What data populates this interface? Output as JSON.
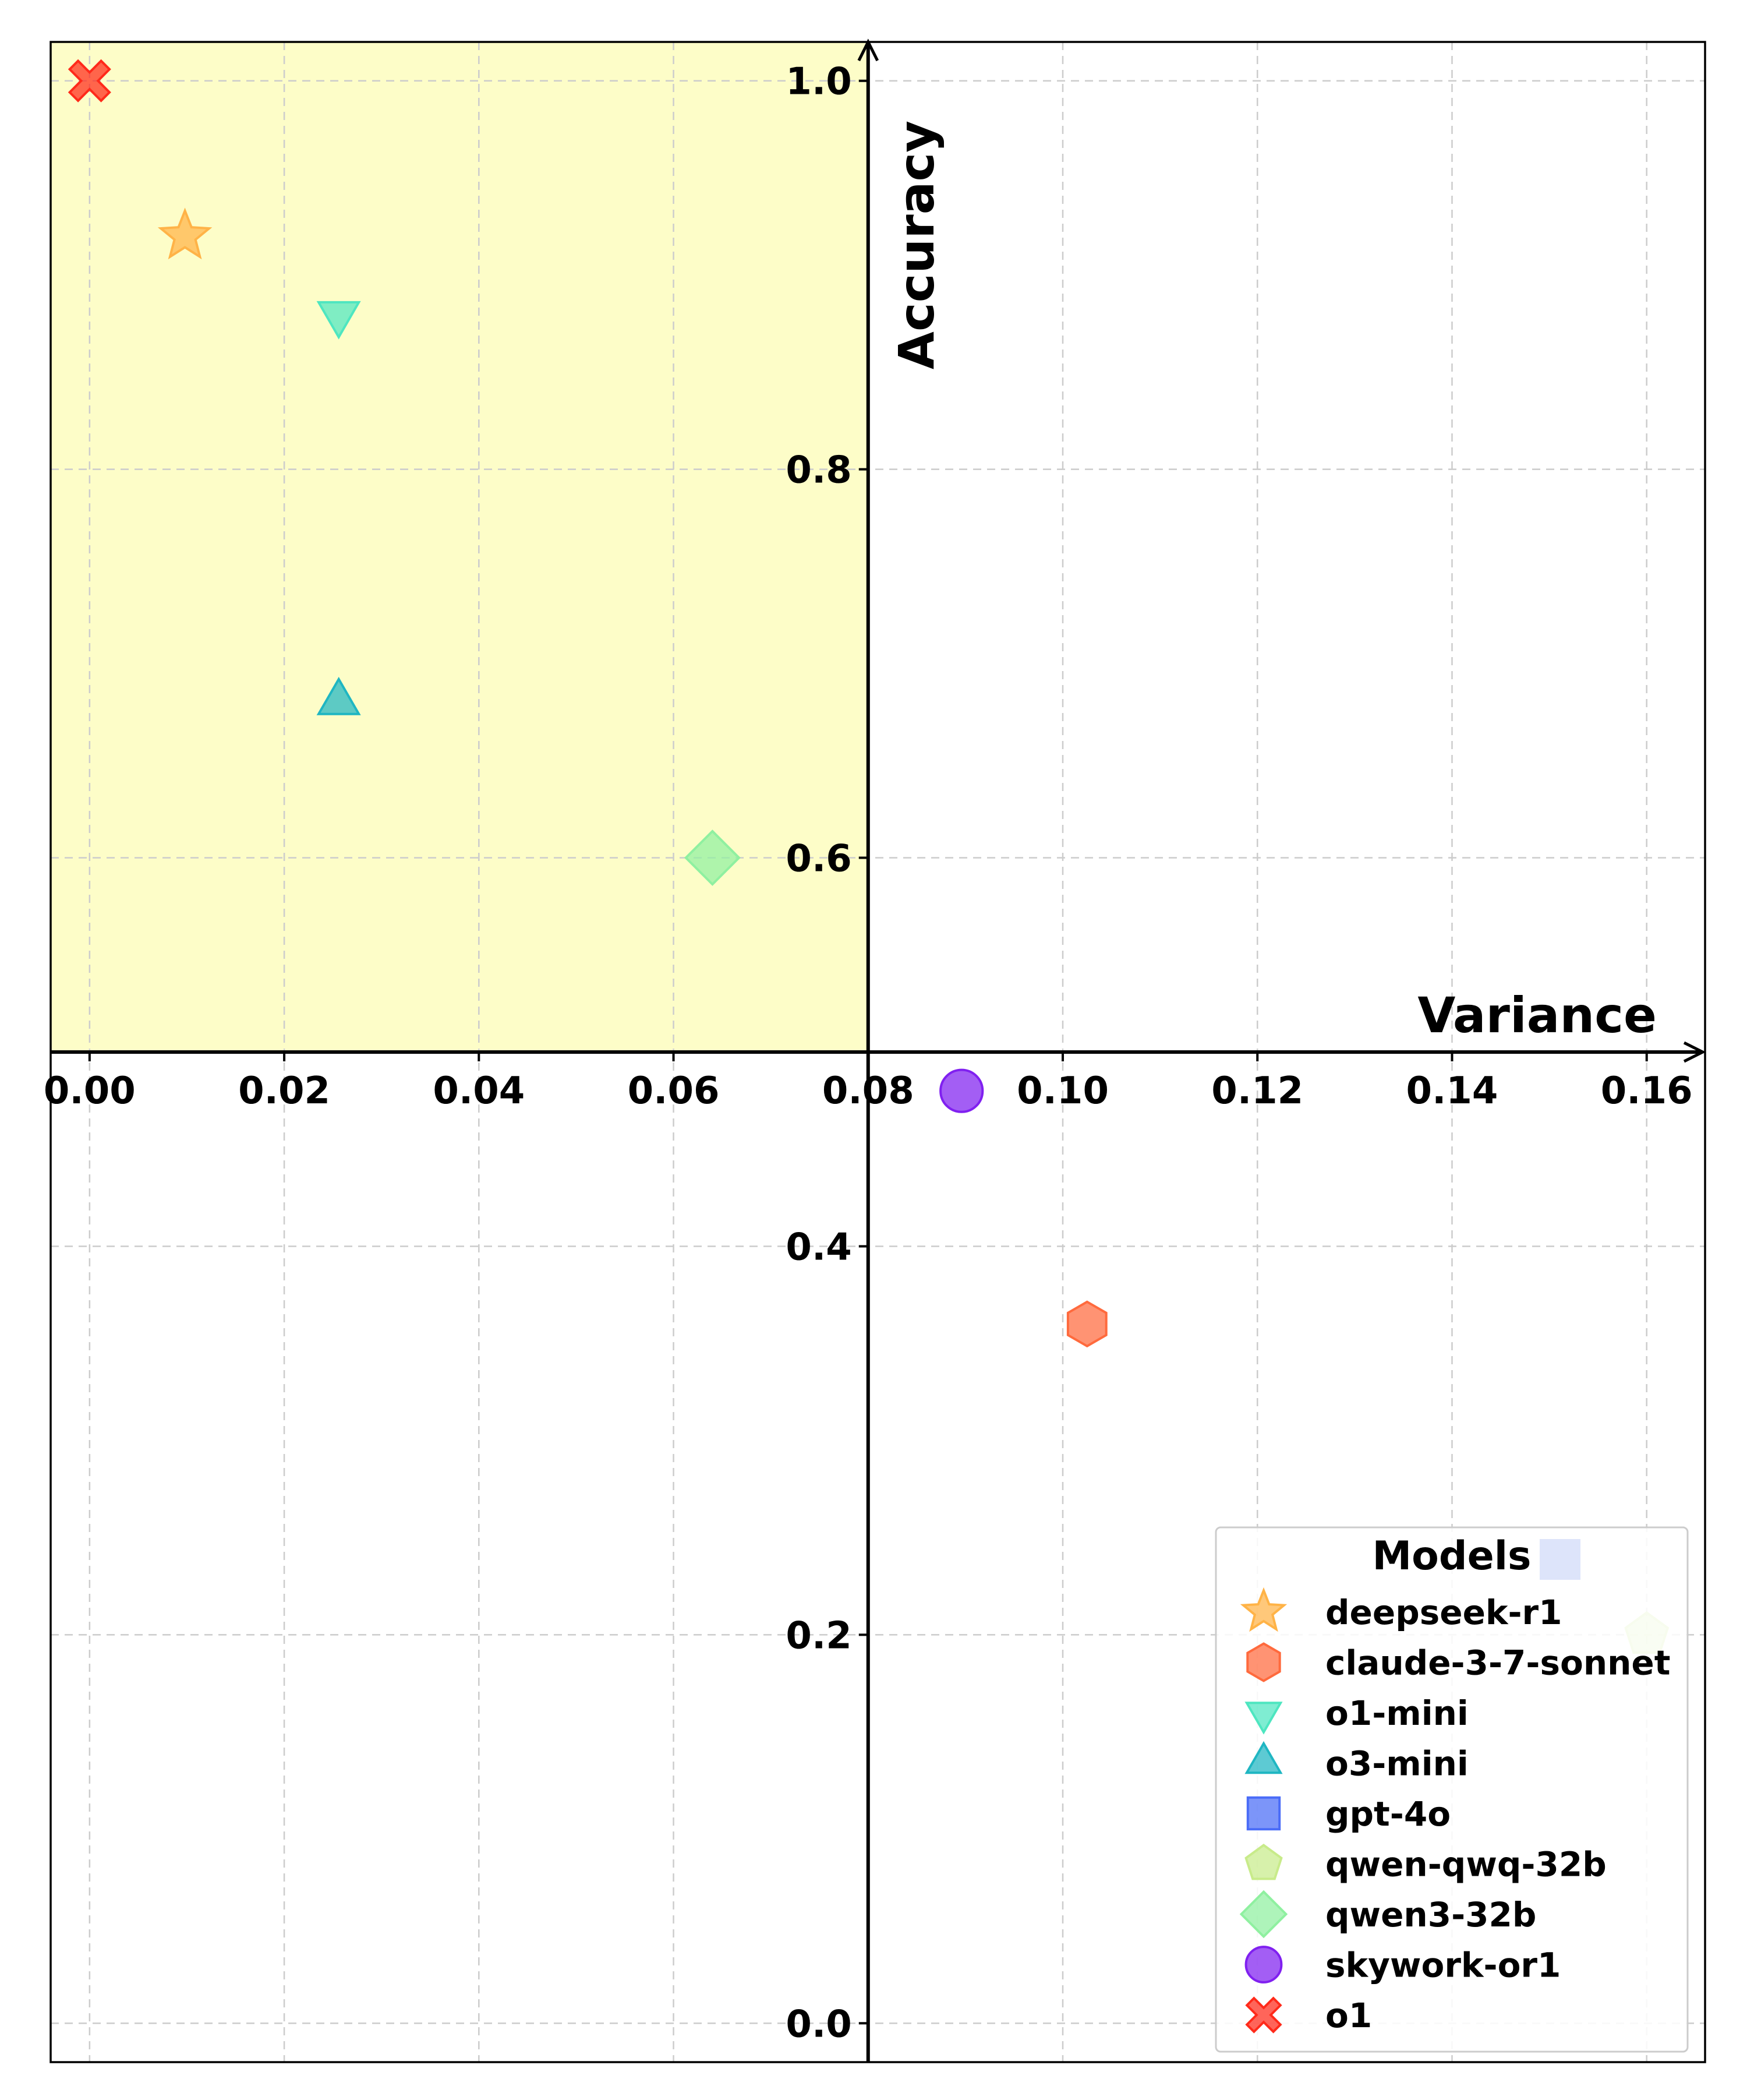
{
  "chart_data": {
    "type": "scatter",
    "xlabel": "Variance",
    "ylabel": "Accuracy",
    "xlim": [
      -0.004,
      0.166
    ],
    "ylim": [
      -0.02,
      1.02
    ],
    "origin": [
      0.08,
      0.5
    ],
    "x_ticks": [
      "0.00",
      "0.02",
      "0.04",
      "0.06",
      "0.08",
      "0.10",
      "0.12",
      "0.14",
      "0.16"
    ],
    "y_ticks": [
      "0.0",
      "0.2",
      "0.4",
      "0.6",
      "0.8",
      "1.0"
    ],
    "grid": true,
    "highlight_region": {
      "x": [
        -0.004,
        0.08
      ],
      "y": [
        0.5,
        1.02
      ],
      "color": "#fdfdc8"
    },
    "legend": {
      "title": "Models",
      "placement": "bottom-right"
    },
    "series": [
      {
        "name": "deepseek-r1",
        "marker": "star",
        "color": "#ffb347",
        "x": 0.0098,
        "y": 0.92
      },
      {
        "name": "claude-3-7-sonnet",
        "marker": "hexagon",
        "color": "#ff6a3d",
        "x": 0.1025,
        "y": 0.36
      },
      {
        "name": "o1-mini",
        "marker": "triangle-down",
        "color": "#4ee6c0",
        "x": 0.0256,
        "y": 0.88
      },
      {
        "name": "o3-mini",
        "marker": "triangle-up",
        "color": "#1fb6c2",
        "x": 0.0256,
        "y": 0.68
      },
      {
        "name": "gpt-4o",
        "marker": "square",
        "color": "#4a6cf7",
        "x": null,
        "y": null
      },
      {
        "name": "qwen-qwq-32b",
        "marker": "pentagon",
        "color": "#c8eb8a",
        "x": 0.16,
        "y": 0.2
      },
      {
        "name": "qwen3-32b",
        "marker": "diamond",
        "color": "#8ff0a0",
        "x": 0.064,
        "y": 0.6
      },
      {
        "name": "skywork-or1",
        "marker": "circle",
        "color": "#8020f0",
        "x": 0.0896,
        "y": 0.48
      },
      {
        "name": "o1",
        "marker": "x",
        "color": "#ff2a1a",
        "x": 0.0,
        "y": 1.0
      }
    ]
  }
}
